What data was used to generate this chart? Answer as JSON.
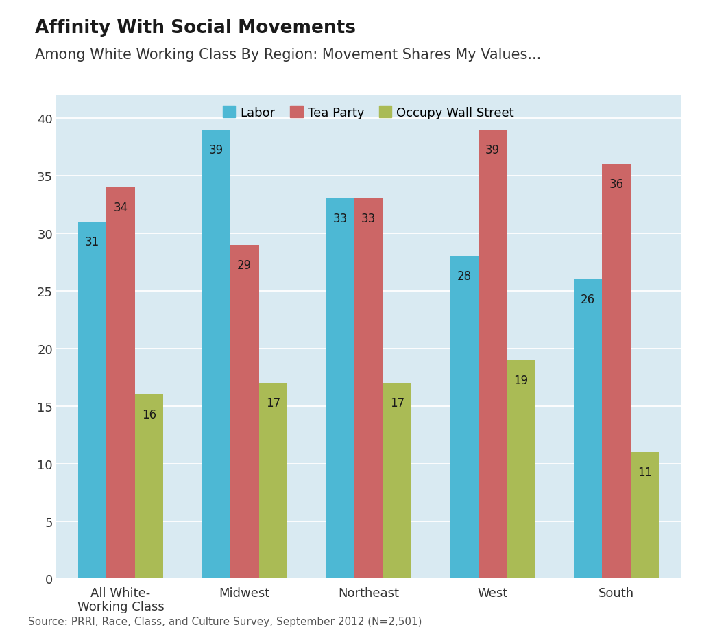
{
  "title": "Affinity With Social Movements",
  "subtitle": "Among White Working Class By Region: Movement Shares My Values...",
  "source": "Source: PRRI, Race, Class, and Culture Survey, September 2012 (N=2,501)",
  "categories": [
    "All White-\nWorking Class",
    "Midwest",
    "Northeast",
    "West",
    "South"
  ],
  "series": {
    "Labor": [
      31,
      39,
      33,
      28,
      26
    ],
    "Tea Party": [
      34,
      29,
      33,
      39,
      36
    ],
    "Occupy Wall Street": [
      16,
      17,
      17,
      19,
      11
    ]
  },
  "colors": {
    "Labor": "#4db8d4",
    "Tea Party": "#cc6666",
    "Occupy Wall Street": "#aabb55"
  },
  "ylim": [
    0,
    42
  ],
  "yticks": [
    0,
    5,
    10,
    15,
    20,
    25,
    30,
    35,
    40
  ],
  "fig_background": "#ffffff",
  "chart_background": "#d9eaf2",
  "title_fontsize": 19,
  "subtitle_fontsize": 15,
  "source_fontsize": 11,
  "bar_width": 0.23,
  "label_fontsize": 12,
  "tick_fontsize": 13,
  "legend_fontsize": 13
}
